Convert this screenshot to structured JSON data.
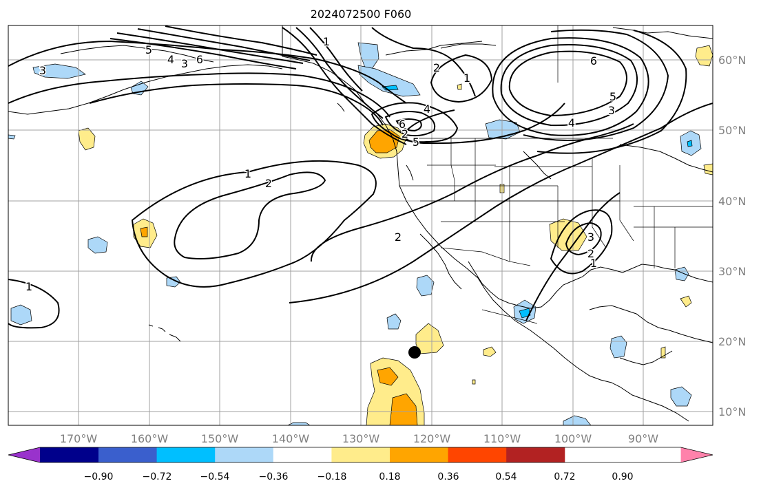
{
  "title": "2024072500 F060",
  "lon_labels": [
    "170°W",
    "160°W",
    "150°W",
    "140°W",
    "130°W",
    "120°W",
    "110°W",
    "100°W",
    "90°W"
  ],
  "lat_labels": [
    "60°N",
    "50°N",
    "40°N",
    "30°N",
    "20°N",
    "10°N"
  ],
  "colorbar": {
    "ticks": [
      "−0.90",
      "−0.72",
      "−0.54",
      "−0.36",
      "−0.18",
      "0.18",
      "0.36",
      "0.54",
      "0.72",
      "0.90"
    ],
    "colors": [
      "#9932cc",
      "#00008b",
      "#3a5fcd",
      "#00bfff",
      "#add8f8",
      "#ffffff",
      "#ffec8b",
      "#ffa500",
      "#ff4500",
      "#b22222",
      "#ff82ab"
    ]
  },
  "contour_labels": [
    "5",
    "4",
    "3",
    "6",
    "3",
    "1",
    "2",
    "1",
    "4",
    "6",
    "5",
    "2",
    "6",
    "4",
    "5",
    "3",
    "1",
    "2",
    "2",
    "3",
    "2",
    "1",
    "1"
  ],
  "marker": "storm-center"
}
